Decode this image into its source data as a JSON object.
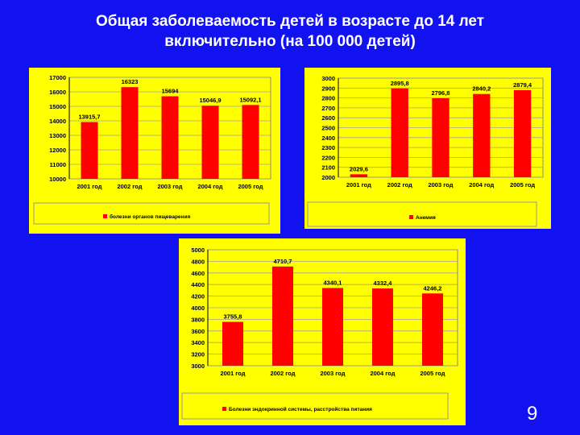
{
  "slide": {
    "title_line1": "Общая заболеваемость детей в возрасте до 14 лет",
    "title_line2": "включительно (на 100 000 детей)",
    "page_number": "9"
  },
  "colors": {
    "background": "#1212f0",
    "panel": "#ffff00",
    "bar": "#ff0000",
    "grid": "#a0a0a0"
  },
  "chart_data": [
    {
      "type": "bar",
      "categories": [
        "2001 год",
        "2002 год",
        "2003 год",
        "2004 год",
        "2005 год"
      ],
      "series": [
        {
          "name": "болезни органов пищеварения",
          "values": [
            13915.7,
            16323,
            15694,
            15046.9,
            15092.1
          ]
        }
      ],
      "value_labels": [
        "13915,7",
        "16323",
        "15694",
        "15046,9",
        "15092,1"
      ],
      "yticks": [
        "17000",
        "16000",
        "15000",
        "14000",
        "13000",
        "12000",
        "11000",
        "10000"
      ],
      "ylim": [
        10000,
        17000
      ],
      "grid": true,
      "legend": "bottom"
    },
    {
      "type": "bar",
      "categories": [
        "2001 год",
        "2002 год",
        "2003 год",
        "2004 год",
        "2005 год"
      ],
      "series": [
        {
          "name": "Анемия",
          "values": [
            2029.6,
            2895.8,
            2796.8,
            2840.2,
            2879.4
          ]
        }
      ],
      "value_labels": [
        "2029,6",
        "2895,8",
        "2796,8",
        "2840,2",
        "2879,4"
      ],
      "yticks": [
        "3000",
        "2900",
        "2800",
        "2700",
        "2600",
        "2500",
        "2400",
        "2300",
        "2200",
        "2100",
        "2000"
      ],
      "ylim": [
        2000,
        3000
      ],
      "grid": true,
      "legend": "bottom"
    },
    {
      "type": "bar",
      "categories": [
        "2001 год",
        "2002 год",
        "2003 год",
        "2004 год",
        "2005 год"
      ],
      "series": [
        {
          "name": "Болезни эндокринной системы, расстройства питания",
          "values": [
            3755.8,
            4710.7,
            4340.1,
            4332.4,
            4246.2
          ]
        }
      ],
      "value_labels": [
        "3755,8",
        "4710,7",
        "4340,1",
        "4332,4",
        "4246,2"
      ],
      "yticks": [
        "5000",
        "4800",
        "4600",
        "4400",
        "4200",
        "4000",
        "3800",
        "3600",
        "3400",
        "3200",
        "3000"
      ],
      "ylim": [
        3000,
        5000
      ],
      "grid": true,
      "legend": "bottom"
    }
  ]
}
